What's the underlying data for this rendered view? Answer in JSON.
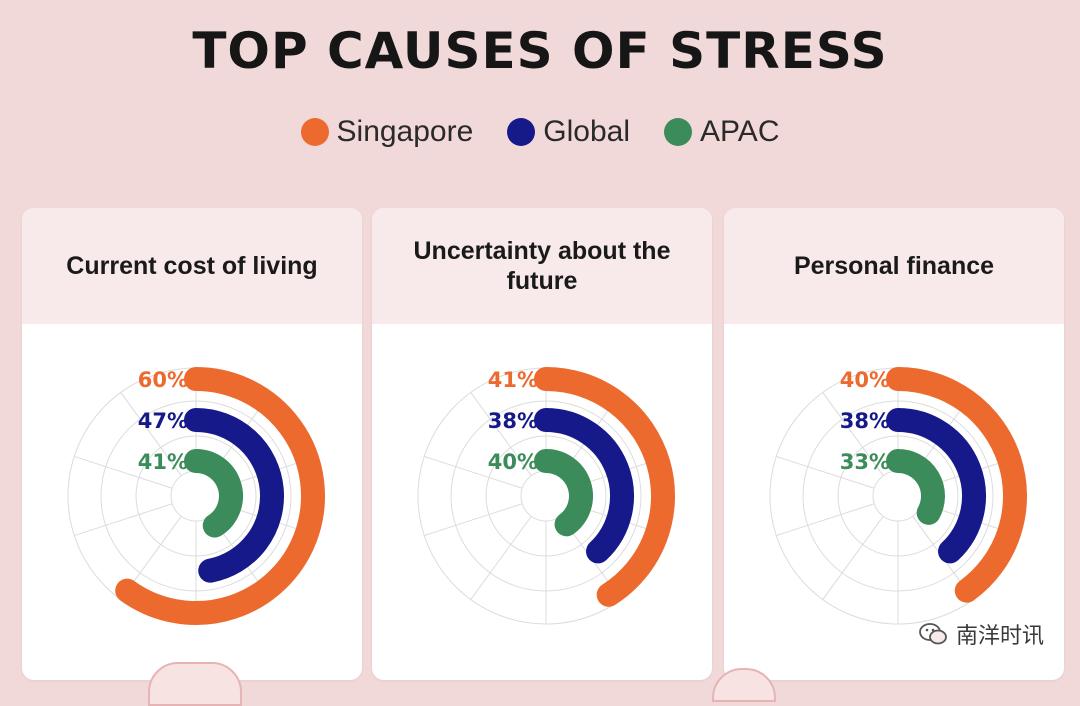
{
  "title": "TOP CAUSES OF STRESS",
  "colors": {
    "singapore": "#ec6a2d",
    "global": "#16198a",
    "apac": "#3b8c5a"
  },
  "legend": [
    {
      "label": "Singapore",
      "color": "#ec6a2d"
    },
    {
      "label": "Global",
      "color": "#16198a"
    },
    {
      "label": "APAC",
      "color": "#3b8c5a"
    }
  ],
  "chart_data": [
    {
      "type": "radial-bar",
      "title": "Current cost of living",
      "series": [
        {
          "name": "Singapore",
          "value": 60,
          "label": "60%"
        },
        {
          "name": "Global",
          "value": 47,
          "label": "47%"
        },
        {
          "name": "APAC",
          "value": 41,
          "label": "41%"
        }
      ],
      "max": 100
    },
    {
      "type": "radial-bar",
      "title": "Uncertainty about the future",
      "series": [
        {
          "name": "Singapore",
          "value": 41,
          "label": "41%"
        },
        {
          "name": "Global",
          "value": 38,
          "label": "38%"
        },
        {
          "name": "APAC",
          "value": 40,
          "label": "40%"
        }
      ],
      "max": 100
    },
    {
      "type": "radial-bar",
      "title": "Personal finance",
      "series": [
        {
          "name": "Singapore",
          "value": 40,
          "label": "40%"
        },
        {
          "name": "Global",
          "value": 38,
          "label": "38%"
        },
        {
          "name": "APAC",
          "value": 33,
          "label": "33%"
        }
      ],
      "max": 100
    }
  ],
  "watermark": {
    "text": "南洋时讯",
    "icon": "wechat-icon"
  }
}
